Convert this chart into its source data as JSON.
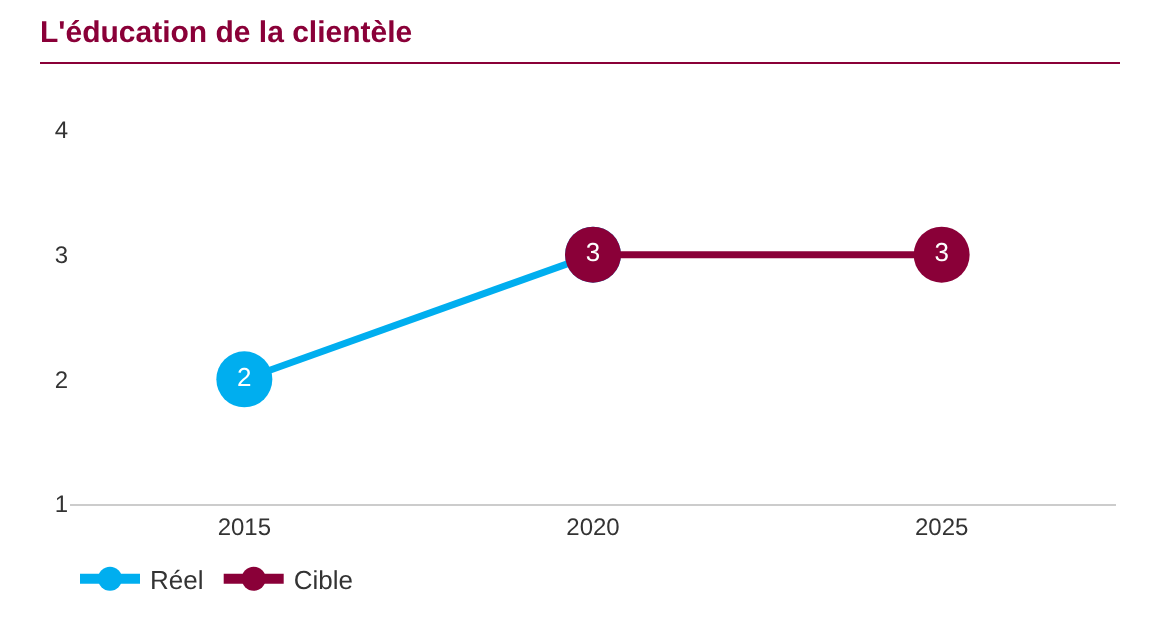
{
  "chart_data": {
    "type": "line",
    "title": "L'éducation de la clientèle",
    "series": [
      {
        "name": "Réel",
        "color": "#00aeef",
        "x": [
          2015,
          2020
        ],
        "values": [
          2,
          3
        ],
        "value_labels": [
          "2",
          null
        ]
      },
      {
        "name": "Cible",
        "color": "#8a0038",
        "x": [
          2020,
          2025
        ],
        "values": [
          3,
          3
        ],
        "value_labels": [
          "3",
          "3"
        ]
      }
    ],
    "xlim": [
      2012.5,
      2027.5
    ],
    "xticks": [
      2015,
      2020,
      2025
    ],
    "ylim": [
      1,
      4
    ],
    "yticks": [
      1,
      2,
      3,
      4
    ],
    "grid": false,
    "legend": "bottom left",
    "marker": "circle",
    "line_style": "solid"
  }
}
